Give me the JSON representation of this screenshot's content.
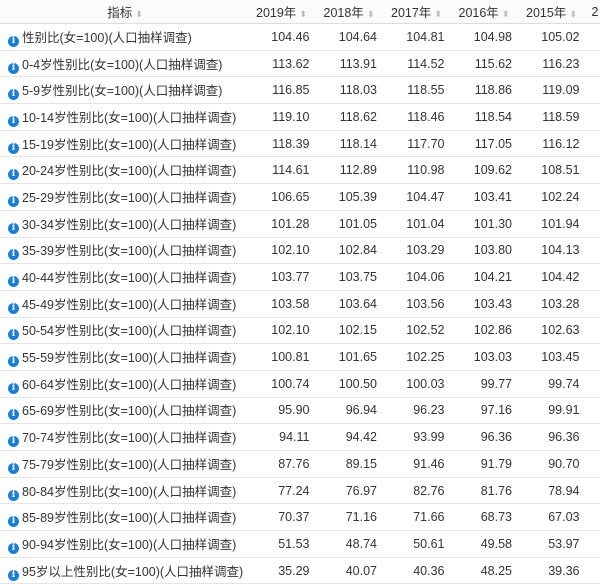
{
  "table": {
    "header": {
      "indicator": "指标",
      "years": [
        "2019年",
        "2018年",
        "2017年",
        "2016年",
        "2015年",
        "2"
      ]
    },
    "sort_icon": "sort-icon",
    "info_icon": "info-icon",
    "accent_color": "#1a7fd6",
    "rows": [
      {
        "label": "性别比(女=100)(人口抽样调查)",
        "values": [
          "104.46",
          "104.64",
          "104.81",
          "104.98",
          "105.02"
        ]
      },
      {
        "label": "0-4岁性别比(女=100)(人口抽样调查)",
        "values": [
          "113.62",
          "113.91",
          "114.52",
          "115.62",
          "116.23"
        ]
      },
      {
        "label": "5-9岁性别比(女=100)(人口抽样调查)",
        "values": [
          "116.85",
          "118.03",
          "118.55",
          "118.86",
          "119.09"
        ]
      },
      {
        "label": "10-14岁性别比(女=100)(人口抽样调查)",
        "values": [
          "119.10",
          "118.62",
          "118.46",
          "118.54",
          "118.59"
        ]
      },
      {
        "label": "15-19岁性别比(女=100)(人口抽样调查)",
        "values": [
          "118.39",
          "118.14",
          "117.70",
          "117.05",
          "116.12"
        ]
      },
      {
        "label": "20-24岁性别比(女=100)(人口抽样调查)",
        "values": [
          "114.61",
          "112.89",
          "110.98",
          "109.62",
          "108.51"
        ]
      },
      {
        "label": "25-29岁性别比(女=100)(人口抽样调查)",
        "values": [
          "106.65",
          "105.39",
          "104.47",
          "103.41",
          "102.24"
        ]
      },
      {
        "label": "30-34岁性别比(女=100)(人口抽样调查)",
        "values": [
          "101.28",
          "101.05",
          "101.04",
          "101.30",
          "101.94"
        ]
      },
      {
        "label": "35-39岁性别比(女=100)(人口抽样调查)",
        "values": [
          "102.10",
          "102.84",
          "103.29",
          "103.80",
          "104.13"
        ]
      },
      {
        "label": "40-44岁性别比(女=100)(人口抽样调查)",
        "values": [
          "103.77",
          "103.75",
          "104.06",
          "104.21",
          "104.42"
        ]
      },
      {
        "label": "45-49岁性别比(女=100)(人口抽样调查)",
        "values": [
          "103.58",
          "103.64",
          "103.56",
          "103.43",
          "103.28"
        ]
      },
      {
        "label": "50-54岁性别比(女=100)(人口抽样调查)",
        "values": [
          "102.10",
          "102.15",
          "102.52",
          "102.86",
          "102.63"
        ]
      },
      {
        "label": "55-59岁性别比(女=100)(人口抽样调查)",
        "values": [
          "100.81",
          "101.65",
          "102.25",
          "103.03",
          "103.45"
        ]
      },
      {
        "label": "60-64岁性别比(女=100)(人口抽样调查)",
        "values": [
          "100.74",
          "100.50",
          "100.03",
          "99.77",
          "99.74"
        ]
      },
      {
        "label": "65-69岁性别比(女=100)(人口抽样调查)",
        "values": [
          "95.90",
          "96.94",
          "96.23",
          "97.16",
          "99.91"
        ]
      },
      {
        "label": "70-74岁性别比(女=100)(人口抽样调查)",
        "values": [
          "94.11",
          "94.42",
          "93.99",
          "96.36",
          "96.36"
        ]
      },
      {
        "label": "75-79岁性别比(女=100)(人口抽样调查)",
        "values": [
          "87.76",
          "89.15",
          "91.46",
          "91.79",
          "90.70"
        ]
      },
      {
        "label": "80-84岁性别比(女=100)(人口抽样调查)",
        "values": [
          "77.24",
          "76.97",
          "82.76",
          "81.76",
          "78.94"
        ]
      },
      {
        "label": "85-89岁性别比(女=100)(人口抽样调查)",
        "values": [
          "70.37",
          "71.16",
          "71.66",
          "68.73",
          "67.03"
        ]
      },
      {
        "label": "90-94岁性别比(女=100)(人口抽样调查)",
        "values": [
          "51.53",
          "48.74",
          "50.61",
          "49.58",
          "53.97"
        ]
      },
      {
        "label": "95岁以上性别比(女=100)(人口抽样调查)",
        "values": [
          "35.29",
          "40.07",
          "40.36",
          "48.25",
          "39.36"
        ]
      }
    ]
  }
}
